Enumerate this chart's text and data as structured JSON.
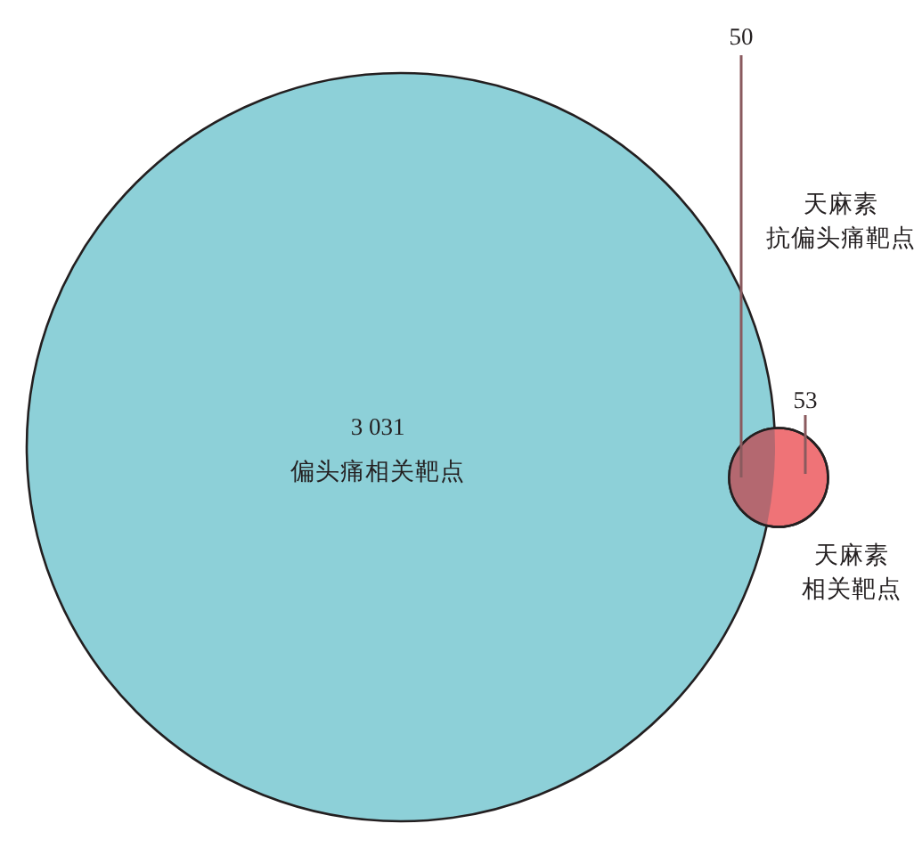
{
  "chart_data": {
    "type": "other",
    "categories": [
      "偏头痛相关靶点",
      "天麻素相关靶点",
      "天麻素抗偏头痛靶点"
    ],
    "values": [
      3031,
      53,
      50
    ],
    "value_labels": [
      "3 031",
      "53",
      "50"
    ],
    "colors": [
      "#8dd0d8",
      "#ef7377",
      "#b46870"
    ]
  }
}
